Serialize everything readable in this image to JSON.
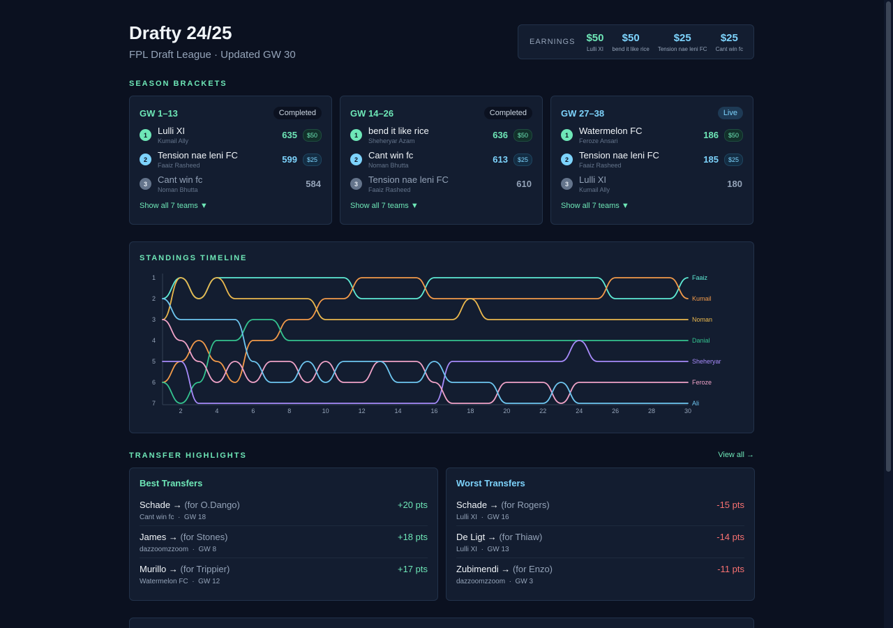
{
  "header": {
    "title": "Drafty 24/25",
    "subtitle": "FPL Draft League · Updated GW 30"
  },
  "earnings": {
    "label": "EARNINGS",
    "items": [
      {
        "amount": "$50",
        "team": "Lulli XI",
        "color": "#6ee7b7"
      },
      {
        "amount": "$50",
        "team": "bend it like rice",
        "color": "#7dd3fc"
      },
      {
        "amount": "$25",
        "team": "Tension nae leni FC",
        "color": "#7dd3fc"
      },
      {
        "amount": "$25",
        "team": "Cant win fc",
        "color": "#7dd3fc"
      }
    ]
  },
  "brackets": {
    "title": "SEASON BRACKETS",
    "items": [
      {
        "name": "GW 1–13",
        "status": "Completed",
        "name_color": "#6ee7b7",
        "ranks": [
          {
            "rank": "1",
            "team": "Lulli XI",
            "manager": "Kumail Ally",
            "score": "635",
            "prize": "$50"
          },
          {
            "rank": "2",
            "team": "Tension nae leni FC",
            "manager": "Faaiz Rasheed",
            "score": "599",
            "prize": "$25"
          },
          {
            "rank": "3",
            "team": "Cant win fc",
            "manager": "Noman Bhutta",
            "score": "584",
            "prize": ""
          }
        ],
        "show_all": "Show all 7 teams ▼"
      },
      {
        "name": "GW 14–26",
        "status": "Completed",
        "name_color": "#6ee7b7",
        "ranks": [
          {
            "rank": "1",
            "team": "bend it like rice",
            "manager": "Sheheryar Azam",
            "score": "636",
            "prize": "$50"
          },
          {
            "rank": "2",
            "team": "Cant win fc",
            "manager": "Noman Bhutta",
            "score": "613",
            "prize": "$25"
          },
          {
            "rank": "3",
            "team": "Tension nae leni FC",
            "manager": "Faaiz Rasheed",
            "score": "610",
            "prize": ""
          }
        ],
        "show_all": "Show all 7 teams ▼"
      },
      {
        "name": "GW 27–38",
        "status": "Live",
        "name_color": "#7dd3fc",
        "ranks": [
          {
            "rank": "1",
            "team": "Watermelon FC",
            "manager": "Feroze Ansari",
            "score": "186",
            "prize": "$50"
          },
          {
            "rank": "2",
            "team": "Tension nae leni FC",
            "manager": "Faaiz Rasheed",
            "score": "185",
            "prize": "$25"
          },
          {
            "rank": "3",
            "team": "Lulli XI",
            "manager": "Kumail Ally",
            "score": "180",
            "prize": ""
          }
        ],
        "show_all": "Show all 7 teams ▼"
      }
    ]
  },
  "timeline": {
    "title": "STANDINGS TIMELINE"
  },
  "chart_data": {
    "type": "line",
    "title": "STANDINGS TIMELINE",
    "xlabel": "",
    "ylabel": "",
    "xlim": [
      1,
      30
    ],
    "ylim": [
      1,
      7
    ],
    "x_ticks": [
      2,
      4,
      6,
      8,
      10,
      12,
      14,
      16,
      18,
      20,
      22,
      24,
      26,
      28,
      30
    ],
    "y_ticks": [
      1,
      2,
      3,
      4,
      5,
      6,
      7
    ],
    "y_inverted": true,
    "series": [
      {
        "name": "Faaiz",
        "color": "#5eead4",
        "values": [
          2,
          1,
          2,
          1,
          1,
          1,
          1,
          1,
          1,
          1,
          1,
          2,
          2,
          2,
          2,
          1,
          1,
          1,
          1,
          1,
          1,
          1,
          1,
          1,
          1,
          2,
          2,
          2,
          2,
          1
        ]
      },
      {
        "name": "Kumail",
        "color": "#f29a4a",
        "values": [
          6,
          5,
          4,
          5,
          6,
          4,
          4,
          3,
          3,
          2,
          2,
          1,
          1,
          1,
          1,
          2,
          2,
          2,
          2,
          2,
          2,
          2,
          2,
          2,
          2,
          1,
          1,
          1,
          1,
          2
        ]
      },
      {
        "name": "Noman",
        "color": "#eab84e",
        "values": [
          3,
          1,
          2,
          1,
          2,
          2,
          2,
          2,
          2,
          3,
          3,
          3,
          3,
          3,
          3,
          3,
          3,
          2,
          3,
          3,
          3,
          3,
          3,
          3,
          3,
          3,
          3,
          3,
          3,
          3
        ]
      },
      {
        "name": "Danial",
        "color": "#34c38f",
        "values": [
          6,
          7,
          6,
          4,
          4,
          3,
          3,
          4,
          4,
          4,
          4,
          4,
          4,
          4,
          4,
          4,
          4,
          4,
          4,
          4,
          4,
          4,
          4,
          4,
          4,
          4,
          4,
          4,
          4,
          4
        ]
      },
      {
        "name": "Sheheryar",
        "color": "#a78bfa",
        "values": [
          5,
          5,
          7,
          7,
          7,
          7,
          7,
          7,
          7,
          7,
          7,
          7,
          7,
          7,
          7,
          7,
          5,
          5,
          5,
          5,
          5,
          5,
          5,
          4,
          5,
          5,
          5,
          5,
          5,
          5
        ]
      },
      {
        "name": "Feroze",
        "color": "#f0a3c8",
        "values": [
          3,
          4,
          5,
          6,
          5,
          6,
          5,
          5,
          6,
          5,
          6,
          6,
          5,
          5,
          5,
          6,
          7,
          7,
          7,
          6,
          6,
          6,
          7,
          6,
          6,
          6,
          6,
          6,
          6,
          6
        ]
      },
      {
        "name": "Ali",
        "color": "#6ec6f0",
        "values": [
          2,
          3,
          3,
          3,
          3,
          5,
          6,
          6,
          5,
          6,
          5,
          5,
          5,
          6,
          6,
          5,
          6,
          6,
          6,
          7,
          7,
          7,
          6,
          7,
          7,
          7,
          7,
          7,
          7,
          7
        ]
      }
    ]
  },
  "transfers": {
    "title": "TRANSFER HIGHLIGHTS",
    "view_all": "View all →",
    "best": {
      "title": "Best Transfers",
      "rows": [
        {
          "player": "Schade →",
          "for": "(for O.Dango)",
          "team": "Cant win fc",
          "gw": "GW 18",
          "pts": "+20 pts"
        },
        {
          "player": "James →",
          "for": "(for Stones)",
          "team": "dazzoomzzoom",
          "gw": "GW 8",
          "pts": "+18 pts"
        },
        {
          "player": "Murillo →",
          "for": "(for Trippier)",
          "team": "Watermelon FC",
          "gw": "GW 12",
          "pts": "+17 pts"
        }
      ]
    },
    "worst": {
      "title": "Worst Transfers",
      "rows": [
        {
          "player": "Schade →",
          "for": "(for Rogers)",
          "team": "Lulli XI",
          "gw": "GW 16",
          "pts": "-15 pts"
        },
        {
          "player": "De Ligt →",
          "for": "(for Thiaw)",
          "team": "Lulli XI",
          "gw": "GW 13",
          "pts": "-14 pts"
        },
        {
          "player": "Zubimendi →",
          "for": "(for Enzo)",
          "team": "dazzoomzzoom",
          "gw": "GW 3",
          "pts": "-11 pts"
        }
      ]
    }
  }
}
